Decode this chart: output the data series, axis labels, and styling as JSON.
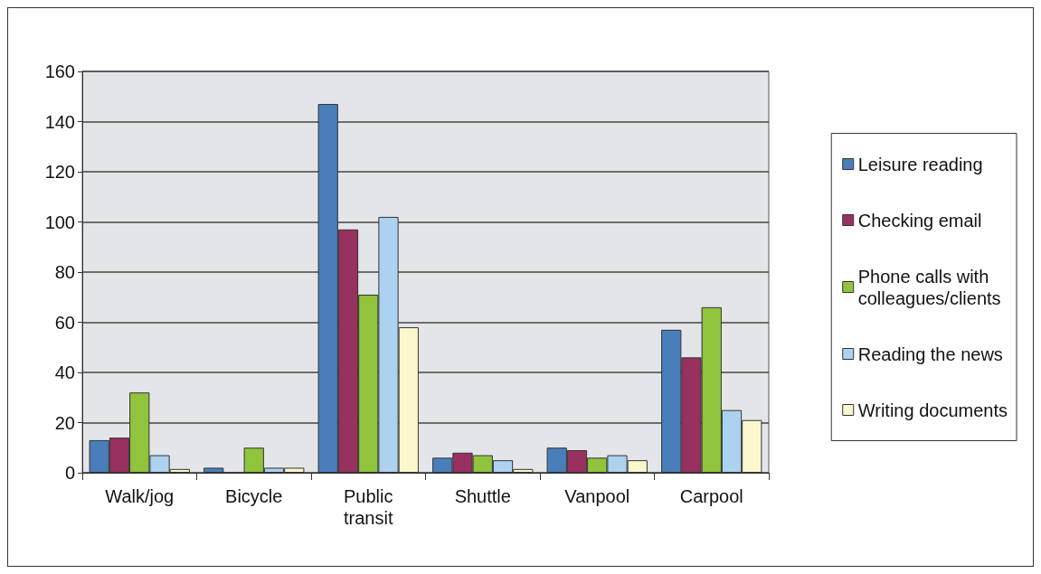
{
  "chart_data": {
    "type": "bar",
    "categories": [
      "Walk/jog",
      "Bicycle",
      "Public\ntransit",
      "Shuttle",
      "Vanpool",
      "Carpool"
    ],
    "series": [
      {
        "name": "Leisure reading",
        "color": "#4a7ebb",
        "values": [
          13,
          2,
          147,
          6,
          10,
          57
        ]
      },
      {
        "name": "Checking email",
        "color": "#98315f",
        "values": [
          14,
          0,
          97,
          8,
          9,
          46
        ]
      },
      {
        "name": "Phone calls with\ncolleagues/clients",
        "color": "#8fc43c",
        "values": [
          32,
          10,
          71,
          7,
          6,
          66
        ]
      },
      {
        "name": "Reading the news",
        "color": "#acd2ef",
        "values": [
          7,
          2,
          102,
          5,
          7,
          25
        ]
      },
      {
        "name": "Writing documents",
        "color": "#fbf7cc",
        "values": [
          1.5,
          2,
          58,
          1.5,
          5,
          21
        ]
      }
    ],
    "ylim": [
      0,
      160
    ],
    "yticks": [
      0,
      20,
      40,
      60,
      80,
      100,
      120,
      140,
      160
    ],
    "grid": "y",
    "legend": "right"
  }
}
